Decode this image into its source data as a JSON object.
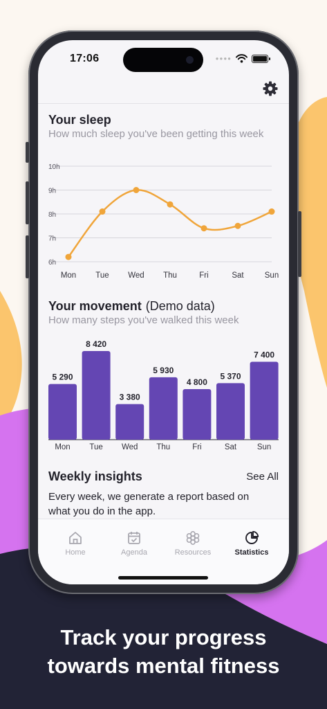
{
  "status_bar": {
    "time": "17:06"
  },
  "sleep": {
    "title": "Your sleep",
    "subtitle": "How much sleep you've been getting this week"
  },
  "movement": {
    "title": "Your movement",
    "demo_label": "(Demo data)",
    "subtitle": "How many steps you've walked this week"
  },
  "insights": {
    "title": "Weekly insights",
    "see_all": "See All",
    "text": "Every week, we generate a report based on what you do in the app."
  },
  "tabs": [
    {
      "label": "Home",
      "icon": "home-icon",
      "active": false
    },
    {
      "label": "Agenda",
      "icon": "calendar-icon",
      "active": false
    },
    {
      "label": "Resources",
      "icon": "flower-icon",
      "active": false
    },
    {
      "label": "Statistics",
      "icon": "pie-chart-icon",
      "active": true
    }
  ],
  "caption": {
    "line1": "Track your progress",
    "line2": "towards mental fitness"
  },
  "colors": {
    "sleep_line": "#f0a53a",
    "bar": "#6446b3",
    "text": "#23222b",
    "muted": "#9896a0"
  },
  "chart_data": [
    {
      "type": "line",
      "categories": [
        "Mon",
        "Tue",
        "Wed",
        "Thu",
        "Fri",
        "Sat",
        "Sun"
      ],
      "values": [
        6.2,
        8.1,
        9.0,
        8.4,
        7.4,
        7.5,
        8.1
      ],
      "y_ticks": [
        "6h",
        "7h",
        "8h",
        "9h",
        "10h"
      ],
      "ylim": [
        6,
        10
      ],
      "grid": true
    },
    {
      "type": "bar",
      "categories": [
        "Mon",
        "Tue",
        "Wed",
        "Thu",
        "Fri",
        "Sat",
        "Sun"
      ],
      "values": [
        5290,
        8420,
        3380,
        5930,
        4800,
        5370,
        7400
      ],
      "value_labels": [
        "5 290",
        "8 420",
        "3 380",
        "5 930",
        "4 800",
        "5 370",
        "7 400"
      ]
    }
  ]
}
